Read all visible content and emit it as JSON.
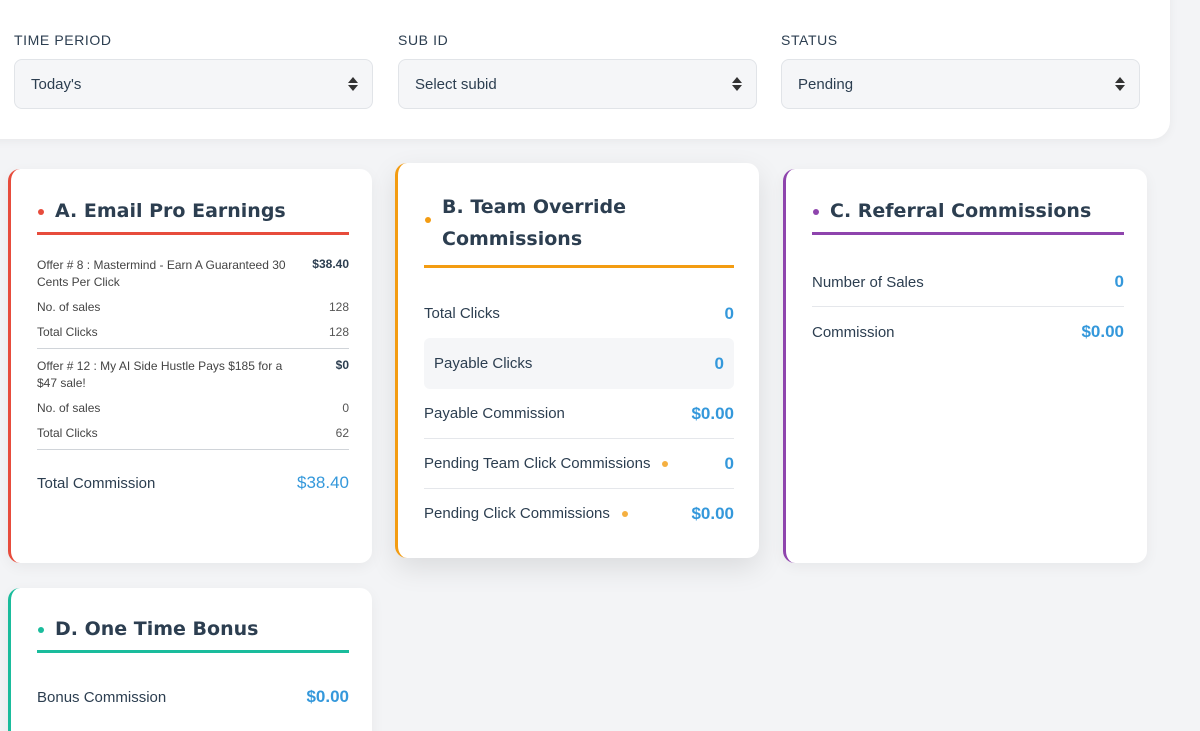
{
  "filters": {
    "time_period": {
      "label": "TIME PERIOD",
      "value": "Today's"
    },
    "sub_id": {
      "label": "SUB ID",
      "value": "Select subid"
    },
    "status": {
      "label": "STATUS",
      "value": "Pending"
    }
  },
  "card_a": {
    "title": "A. Email Pro Earnings",
    "color": "#e74c3c",
    "offers": [
      {
        "name": "Offer # 8 : Mastermind - Earn A Guaranteed 30 Cents Per Click",
        "amount": "$38.40",
        "sales_label": "No. of sales",
        "sales": "128",
        "clicks_label": "Total Clicks",
        "clicks": "128"
      },
      {
        "name": "Offer # 12 : My AI Side Hustle Pays $185 for a $47 sale!",
        "amount": "$0",
        "sales_label": "No. of sales",
        "sales": "0",
        "clicks_label": "Total Clicks",
        "clicks": "62"
      }
    ],
    "total_label": "Total Commission",
    "total_value": "$38.40"
  },
  "card_b": {
    "title_line1": "B. Team Override",
    "title_line2": "Commissions",
    "color": "#f39c12",
    "rows": [
      {
        "label": "Total Clicks",
        "value": "0"
      },
      {
        "label": "Payable Clicks",
        "value": "0"
      },
      {
        "label": "Payable Commission",
        "value": "$0.00"
      },
      {
        "label": "Pending Team Click Commissions",
        "value": "0"
      },
      {
        "label": "Pending Click Commissions",
        "value": "$0.00"
      }
    ]
  },
  "card_c": {
    "title": "C. Referral Commissions",
    "color": "#8e44ad",
    "rows": [
      {
        "label": "Number of Sales",
        "value": "0"
      },
      {
        "label": "Commission",
        "value": "$0.00"
      }
    ]
  },
  "card_d": {
    "title": "D. One Time Bonus",
    "color": "#1abc9c",
    "rows": [
      {
        "label": "Bonus Commission",
        "value": "$0.00"
      }
    ]
  }
}
